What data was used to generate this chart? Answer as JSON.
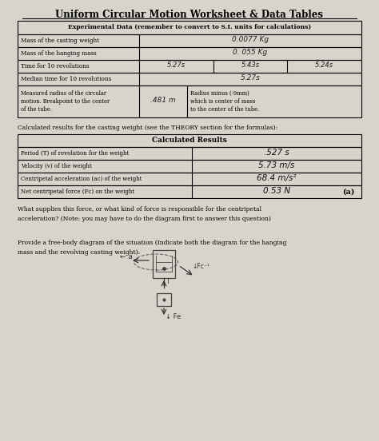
{
  "title": "Uniform Circular Motion Worksheet & Data Tables",
  "bg_color": "#d8d4cc",
  "table1_header": "Experimental Data (remember to convert to S.I. units for calculations)",
  "calc_text": "Calculated results for the casting weight (see the THEORY section for the formulas):",
  "table2_header": "Calculated Results",
  "table2_rows": [
    {
      "label": "Period (T) of revolution for the weight",
      "value": ".527 s"
    },
    {
      "label": "Velocity (v) of the weight",
      "value": "5.73 m/s"
    },
    {
      "label": "Centripetal acceleration (ac) of the weight",
      "value": "68.4 m/s²"
    },
    {
      "label": "Net centripetal force (Fc) on the weight",
      "value": "0.53 N",
      "marker": "(a)"
    }
  ],
  "question1": "What supplies this force, or what kind of force is responsible for the centripetal\nacceleration? (Note: you may have to do the diagram first to answer this question)",
  "question2": "Provide a free-body diagram of the situation (Indicate both the diagram for the hanging\nmass and the revolving casting weight):"
}
